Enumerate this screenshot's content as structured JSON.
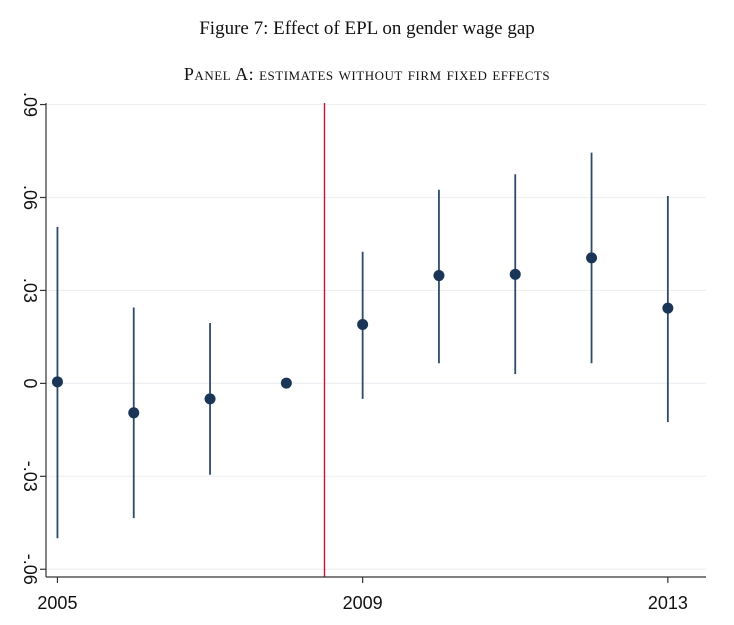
{
  "figure_title": "Figure 7: Effect of EPL on gender wage gap",
  "panel_title": "Panel A: estimates without firm fixed effects",
  "colors": {
    "point": "#1b3557",
    "ci": "#2e4a6b",
    "reference_line": "#c8102e",
    "grid": "#eef0f3",
    "axis": "#333333"
  },
  "chart_data": {
    "type": "scatter",
    "title": "",
    "xlabel": "",
    "ylabel": "",
    "xlim": [
      2004.85,
      2013.5
    ],
    "ylim": [
      -0.0625,
      0.0905
    ],
    "yticks": [
      -0.06,
      -0.03,
      0,
      0.03,
      0.06,
      0.09
    ],
    "ytick_labels": [
      "-.06",
      "-.03",
      "0",
      ".03",
      ".06",
      ".09"
    ],
    "xticks": [
      2005,
      2009,
      2013
    ],
    "xtick_labels": [
      "2005",
      "2009",
      "2013"
    ],
    "grid": true,
    "legend": "none",
    "vertical_line_x": 2008.5,
    "series": [
      {
        "x": [
          2005,
          2006,
          2007,
          2008,
          2009,
          2010,
          2011,
          2012,
          2013
        ],
        "estimate": [
          0.0005,
          -0.0095,
          -0.005,
          0.0001,
          0.019,
          0.0348,
          0.0352,
          0.0405,
          0.0243
        ],
        "ci_low": [
          -0.05,
          -0.0435,
          -0.0295,
          0.0001,
          -0.005,
          0.0065,
          0.003,
          0.0065,
          -0.0125
        ],
        "ci_high": [
          0.0505,
          0.0245,
          0.0195,
          0.0001,
          0.0425,
          0.0625,
          0.0675,
          0.0745,
          0.0605
        ]
      }
    ]
  }
}
